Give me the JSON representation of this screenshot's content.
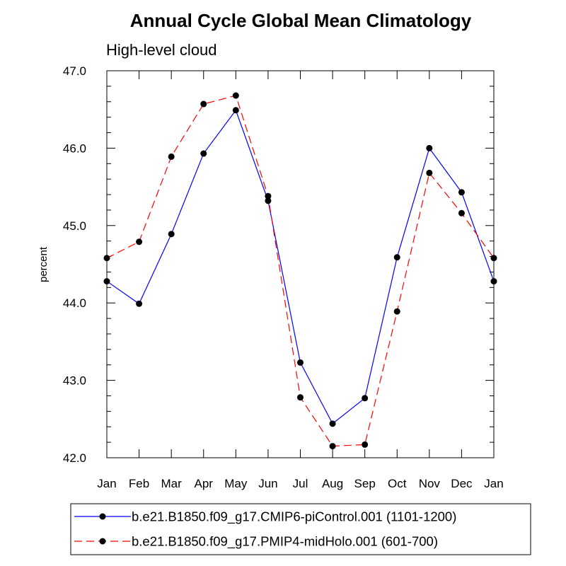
{
  "chart_data": {
    "type": "line",
    "title": "Annual Cycle Global Mean Climatology",
    "subtitle": "High-level cloud",
    "ylabel": "percent",
    "xlabel": "",
    "categories": [
      "Jan",
      "Feb",
      "Mar",
      "Apr",
      "May",
      "Jun",
      "Jul",
      "Aug",
      "Sep",
      "Oct",
      "Nov",
      "Dec",
      "Jan"
    ],
    "ylim": [
      42.0,
      47.0
    ],
    "yticks": [
      "42.0",
      "43.0",
      "44.0",
      "45.0",
      "46.0",
      "47.0"
    ],
    "grid": false,
    "legend_position": "bottom",
    "series": [
      {
        "name": "b.e21.B1850.f09_g17.CMIP6-piControl.001 (1101-1200)",
        "color": "#0000ff",
        "dash": "solid",
        "values": [
          44.28,
          43.99,
          44.89,
          45.93,
          46.49,
          45.32,
          43.23,
          42.44,
          42.77,
          44.59,
          46.0,
          45.43,
          44.28
        ]
      },
      {
        "name": "b.e21.B1850.f09_g17.PMIP4-midHolo.001 (601-700)",
        "color": "#ff0000",
        "dash": "dashed",
        "values": [
          44.58,
          44.79,
          45.89,
          46.57,
          46.68,
          45.38,
          42.78,
          42.15,
          42.17,
          43.89,
          45.68,
          45.16,
          44.58
        ]
      }
    ]
  }
}
